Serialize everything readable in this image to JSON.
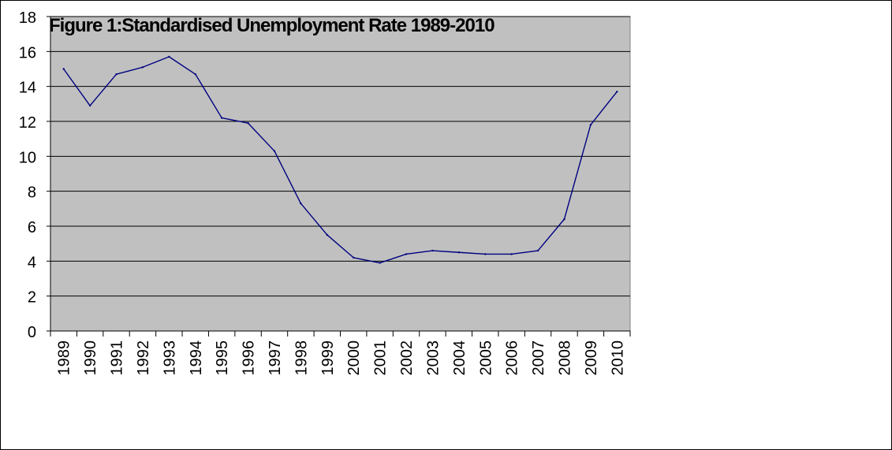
{
  "chart_data": {
    "type": "line",
    "title": "Figure 1:Standardised Unemployment Rate 1989-2010",
    "xlabel": "",
    "ylabel": "",
    "categories": [
      "1989",
      "1990",
      "1991",
      "1992",
      "1993",
      "1994",
      "1995",
      "1996",
      "1997",
      "1998",
      "1999",
      "2000",
      "2001",
      "2002",
      "2003",
      "2004",
      "2005",
      "2006",
      "2007",
      "2008",
      "2009",
      "2010"
    ],
    "series": [
      {
        "values": [
          15.0,
          12.9,
          14.7,
          15.1,
          15.7,
          14.7,
          12.2,
          11.9,
          10.3,
          7.3,
          5.5,
          4.2,
          3.9,
          4.4,
          4.6,
          4.5,
          4.4,
          4.4,
          4.6,
          6.4,
          11.8,
          13.7
        ]
      }
    ],
    "ylim": [
      0,
      18
    ],
    "yticks": [
      0,
      2,
      4,
      6,
      8,
      10,
      12,
      14,
      16,
      18
    ],
    "grid": "horizontal",
    "legend": "none"
  },
  "colors": {
    "plot_background": "#c0c0c0",
    "line": "#000080",
    "gridline": "#000000",
    "frame_border": "#000000"
  }
}
